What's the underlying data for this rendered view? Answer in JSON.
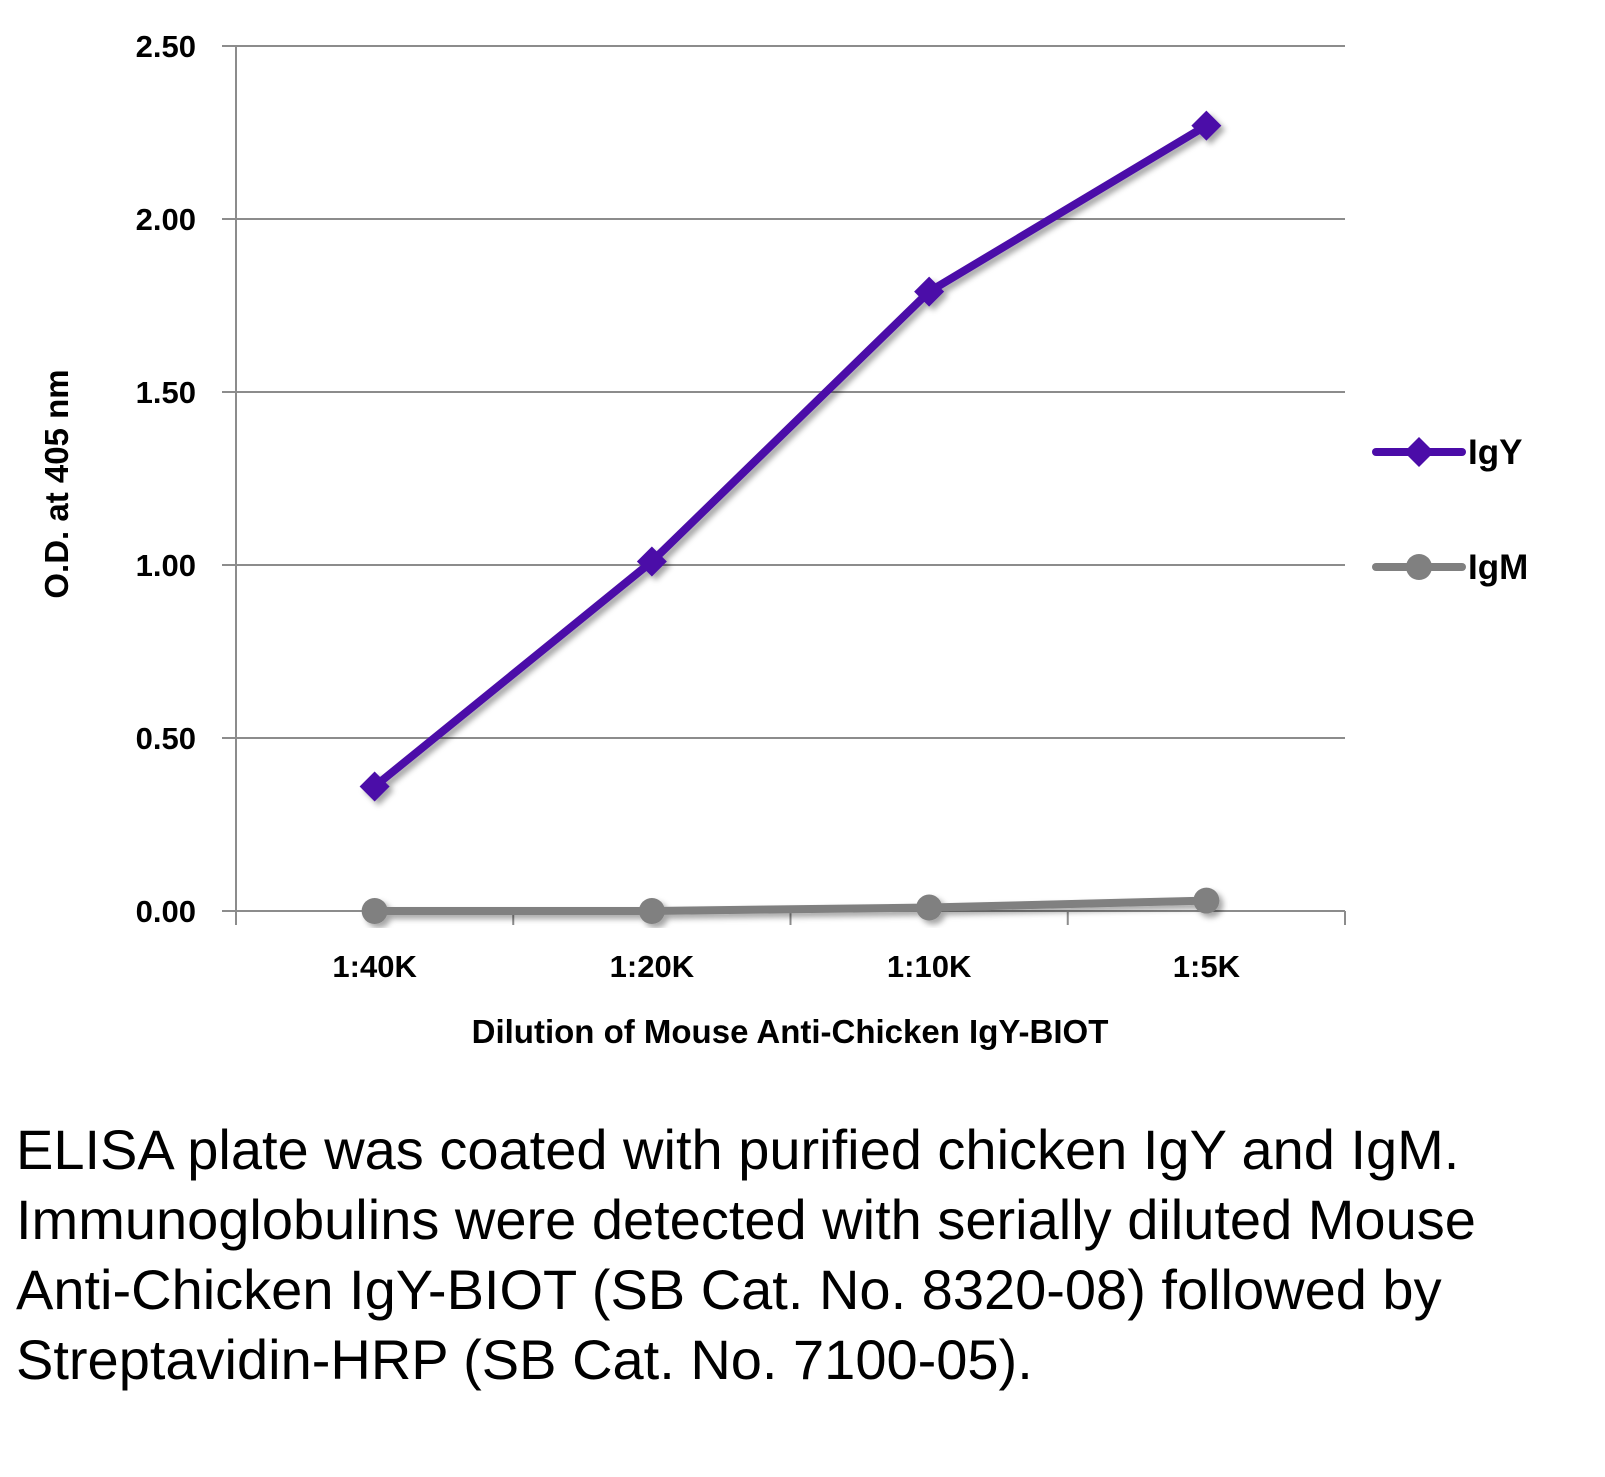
{
  "chart_data": {
    "type": "line",
    "title": "",
    "categories": [
      "1:40K",
      "1:20K",
      "1:10K",
      "1:5K"
    ],
    "xlabel": "Dilution of Mouse Anti-Chicken IgY-BIOT",
    "ylabel": "O.D. at 405 nm",
    "ylim": [
      0,
      2.5
    ],
    "yticks": [
      "0.00",
      "0.50",
      "1.00",
      "1.50",
      "2.00",
      "2.50"
    ],
    "grid": true,
    "legend": "right",
    "series": [
      {
        "name": "IgY",
        "values": [
          0.36,
          1.01,
          1.79,
          2.27
        ],
        "color": "#4b0ca8",
        "marker": "diamond"
      },
      {
        "name": "IgM",
        "values": [
          0.0,
          0.0,
          0.01,
          0.03
        ],
        "color": "#808080",
        "marker": "circle"
      }
    ]
  },
  "caption": "ELISA plate was coated with purified chicken IgY and IgM.  Immunoglobulins were detected with serially diluted Mouse Anti-Chicken IgY-BIOT (SB Cat. No. 8320-08) followed by Streptavidin-HRP (SB Cat. No. 7100-05)."
}
